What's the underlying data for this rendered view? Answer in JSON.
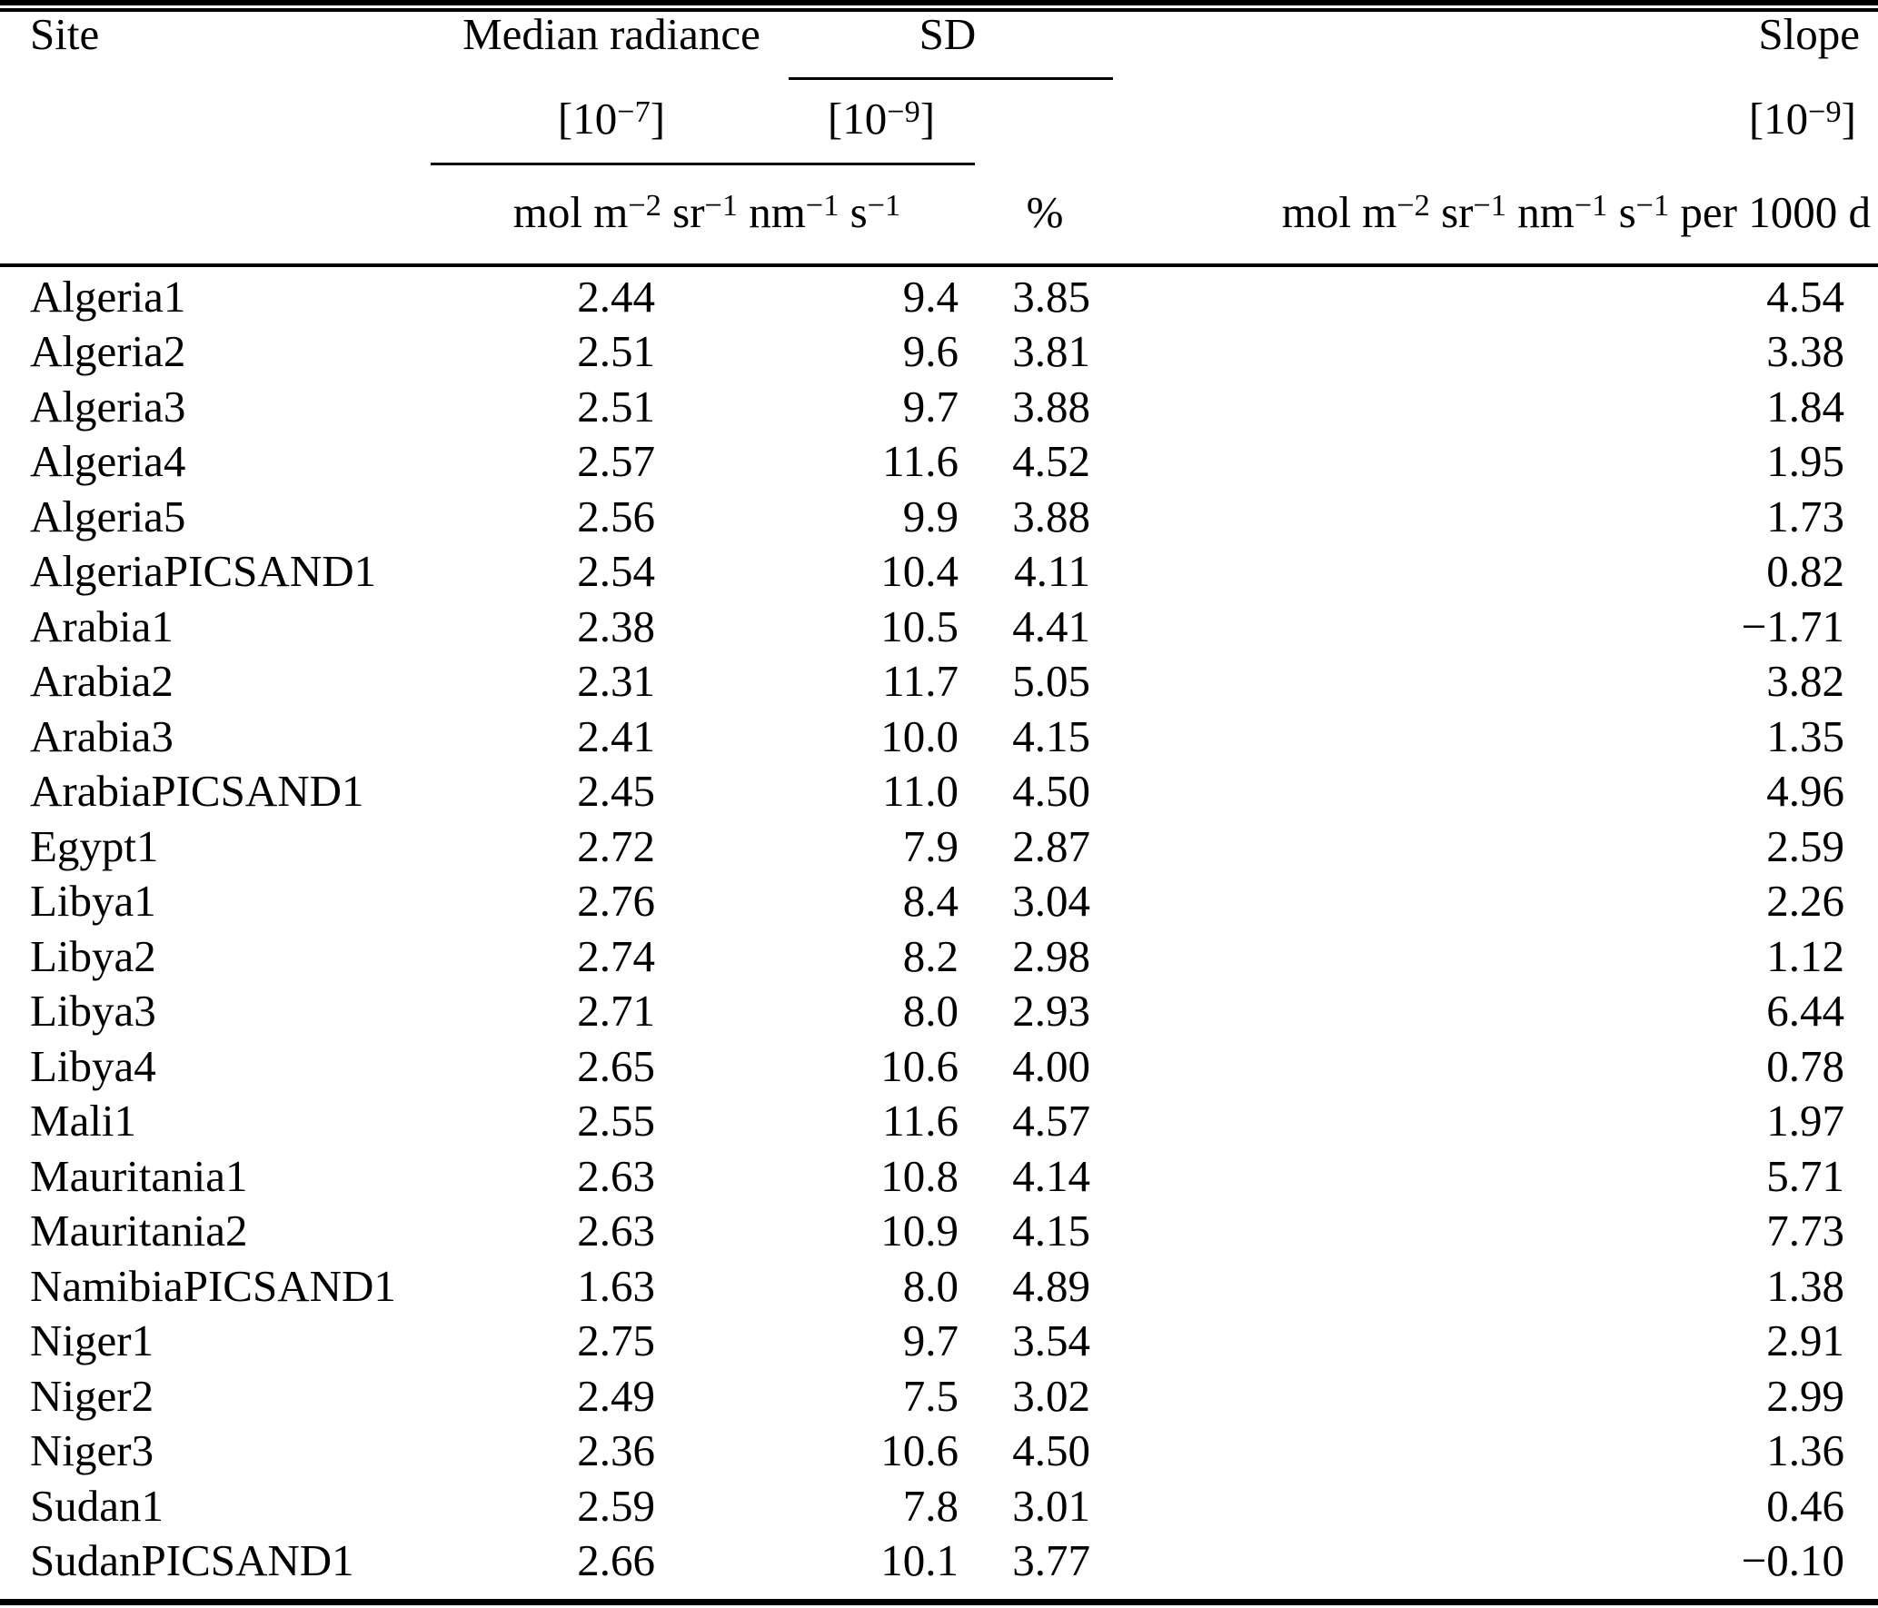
{
  "page": {
    "background": "#ffffff",
    "text_color": "#000000",
    "rule_color": "#000000"
  },
  "header": {
    "site": "Site",
    "median_radiance": "Median radiance",
    "sd": "SD",
    "slope": "Slope",
    "median_scale": {
      "parts": [
        {
          "t": "[10"
        },
        {
          "sup": "−7"
        },
        {
          "t": "]"
        }
      ]
    },
    "sd_scale": {
      "parts": [
        {
          "t": "[10"
        },
        {
          "sup": "−9"
        },
        {
          "t": "]"
        }
      ]
    },
    "slope_scale": {
      "parts": [
        {
          "t": "[10"
        },
        {
          "sup": "−9"
        },
        {
          "t": "]"
        }
      ]
    },
    "radiance_units": {
      "parts": [
        {
          "t": "mol m"
        },
        {
          "sup": "−2"
        },
        {
          "t": " sr"
        },
        {
          "sup": "−1"
        },
        {
          "t": " nm"
        },
        {
          "sup": "−1"
        },
        {
          "t": " s"
        },
        {
          "sup": "−1"
        }
      ]
    },
    "sd_percent_units": "%",
    "slope_units": {
      "parts": [
        {
          "t": "mol m"
        },
        {
          "sup": "−2"
        },
        {
          "t": " sr"
        },
        {
          "sup": "−1"
        },
        {
          "t": " nm"
        },
        {
          "sup": "−1"
        },
        {
          "t": " s"
        },
        {
          "sup": "−1"
        },
        {
          "t": " per 1000 d"
        }
      ]
    }
  },
  "rows": [
    {
      "site": "Algeria1",
      "median_radiance": "2.44",
      "sd_abs": "9.4",
      "sd_pct": "3.85",
      "slope": "4.54"
    },
    {
      "site": "Algeria2",
      "median_radiance": "2.51",
      "sd_abs": "9.6",
      "sd_pct": "3.81",
      "slope": "3.38"
    },
    {
      "site": "Algeria3",
      "median_radiance": "2.51",
      "sd_abs": "9.7",
      "sd_pct": "3.88",
      "slope": "1.84"
    },
    {
      "site": "Algeria4",
      "median_radiance": "2.57",
      "sd_abs": "11.6",
      "sd_pct": "4.52",
      "slope": "1.95"
    },
    {
      "site": "Algeria5",
      "median_radiance": "2.56",
      "sd_abs": "9.9",
      "sd_pct": "3.88",
      "slope": "1.73"
    },
    {
      "site": "AlgeriaPICSAND1",
      "median_radiance": "2.54",
      "sd_abs": "10.4",
      "sd_pct": "4.11",
      "slope": "0.82"
    },
    {
      "site": "Arabia1",
      "median_radiance": "2.38",
      "sd_abs": "10.5",
      "sd_pct": "4.41",
      "slope": "−1.71"
    },
    {
      "site": "Arabia2",
      "median_radiance": "2.31",
      "sd_abs": "11.7",
      "sd_pct": "5.05",
      "slope": "3.82"
    },
    {
      "site": "Arabia3",
      "median_radiance": "2.41",
      "sd_abs": "10.0",
      "sd_pct": "4.15",
      "slope": "1.35"
    },
    {
      "site": "ArabiaPICSAND1",
      "median_radiance": "2.45",
      "sd_abs": "11.0",
      "sd_pct": "4.50",
      "slope": "4.96"
    },
    {
      "site": "Egypt1",
      "median_radiance": "2.72",
      "sd_abs": "7.9",
      "sd_pct": "2.87",
      "slope": "2.59"
    },
    {
      "site": "Libya1",
      "median_radiance": "2.76",
      "sd_abs": "8.4",
      "sd_pct": "3.04",
      "slope": "2.26"
    },
    {
      "site": "Libya2",
      "median_radiance": "2.74",
      "sd_abs": "8.2",
      "sd_pct": "2.98",
      "slope": "1.12"
    },
    {
      "site": "Libya3",
      "median_radiance": "2.71",
      "sd_abs": "8.0",
      "sd_pct": "2.93",
      "slope": "6.44"
    },
    {
      "site": "Libya4",
      "median_radiance": "2.65",
      "sd_abs": "10.6",
      "sd_pct": "4.00",
      "slope": "0.78"
    },
    {
      "site": "Mali1",
      "median_radiance": "2.55",
      "sd_abs": "11.6",
      "sd_pct": "4.57",
      "slope": "1.97"
    },
    {
      "site": "Mauritania1",
      "median_radiance": "2.63",
      "sd_abs": "10.8",
      "sd_pct": "4.14",
      "slope": "5.71"
    },
    {
      "site": "Mauritania2",
      "median_radiance": "2.63",
      "sd_abs": "10.9",
      "sd_pct": "4.15",
      "slope": "7.73"
    },
    {
      "site": "NamibiaPICSAND1",
      "median_radiance": "1.63",
      "sd_abs": "8.0",
      "sd_pct": "4.89",
      "slope": "1.38"
    },
    {
      "site": "Niger1",
      "median_radiance": "2.75",
      "sd_abs": "9.7",
      "sd_pct": "3.54",
      "slope": "2.91"
    },
    {
      "site": "Niger2",
      "median_radiance": "2.49",
      "sd_abs": "7.5",
      "sd_pct": "3.02",
      "slope": "2.99"
    },
    {
      "site": "Niger3",
      "median_radiance": "2.36",
      "sd_abs": "10.6",
      "sd_pct": "4.50",
      "slope": "1.36"
    },
    {
      "site": "Sudan1",
      "median_radiance": "2.59",
      "sd_abs": "7.8",
      "sd_pct": "3.01",
      "slope": "0.46"
    },
    {
      "site": "SudanPICSAND1",
      "median_radiance": "2.66",
      "sd_abs": "10.1",
      "sd_pct": "3.77",
      "slope": "−0.10"
    }
  ]
}
